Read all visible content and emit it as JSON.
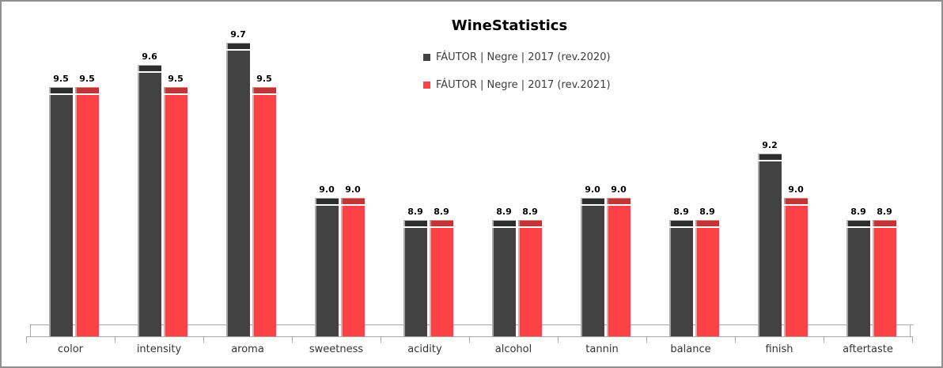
{
  "window": {
    "background": "#ffffff",
    "border_color": "#8f8f8f"
  },
  "chart_data": {
    "type": "bar",
    "title": "WineStatistics",
    "categories": [
      "color",
      "intensity",
      "aroma",
      "sweetness",
      "acidity",
      "alcohol",
      "tannin",
      "balance",
      "finish",
      "aftertaste"
    ],
    "series": [
      {
        "name": "FÁUTOR | Negre | 2017 (rev.2020)",
        "color": "#424242",
        "cap_color": "#2e2e2e",
        "highlight_color": "#a8a8a8",
        "cap_edge_color": "#b5b5b5",
        "values": [
          9.5,
          9.6,
          9.7,
          9.0,
          8.9,
          8.9,
          9.0,
          8.9,
          9.2,
          8.9
        ]
      },
      {
        "name": "FÁUTOR | Negre | 2017 (rev.2021)",
        "color": "#fc4244",
        "cap_color": "#c23436",
        "highlight_color": "#ff9fa0",
        "cap_edge_color": "#d98a8a",
        "values": [
          9.5,
          9.5,
          9.5,
          9.0,
          8.9,
          8.9,
          9.0,
          8.9,
          9.0,
          8.9
        ]
      }
    ],
    "value_labels": true,
    "value_decimals": 1,
    "legend_position": "top-center",
    "grid": false,
    "y_axis_visible": false,
    "x_axis_visible": true,
    "baseline_value": 8.375,
    "axis_color": "#a9a9a9"
  }
}
